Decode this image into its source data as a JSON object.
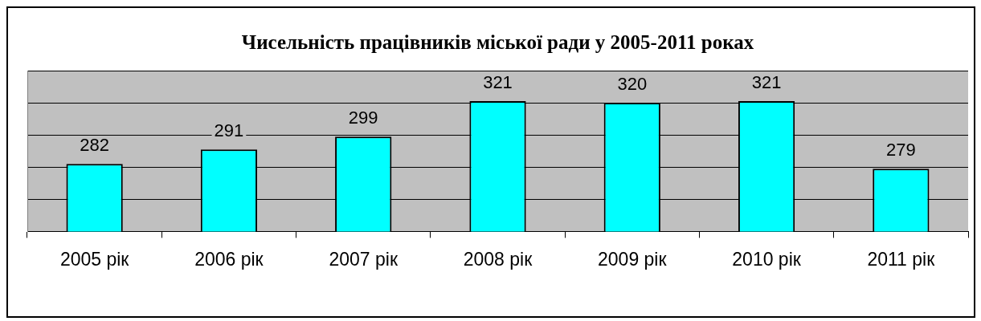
{
  "chart_data": {
    "type": "bar",
    "title": "Чисельність працівників міської ради у 2005-2011 роках",
    "categories": [
      "2005 рік",
      "2006 рік",
      "2007 рік",
      "2008 рік",
      "2009 рік",
      "2010 рік",
      "2011 рік"
    ],
    "values": [
      282,
      291,
      299,
      321,
      320,
      321,
      279
    ],
    "color": "#00ffff",
    "ylim": [
      240,
      340
    ],
    "grid": "y",
    "tick_labels": "x",
    "data_labels": true,
    "legend": false
  }
}
